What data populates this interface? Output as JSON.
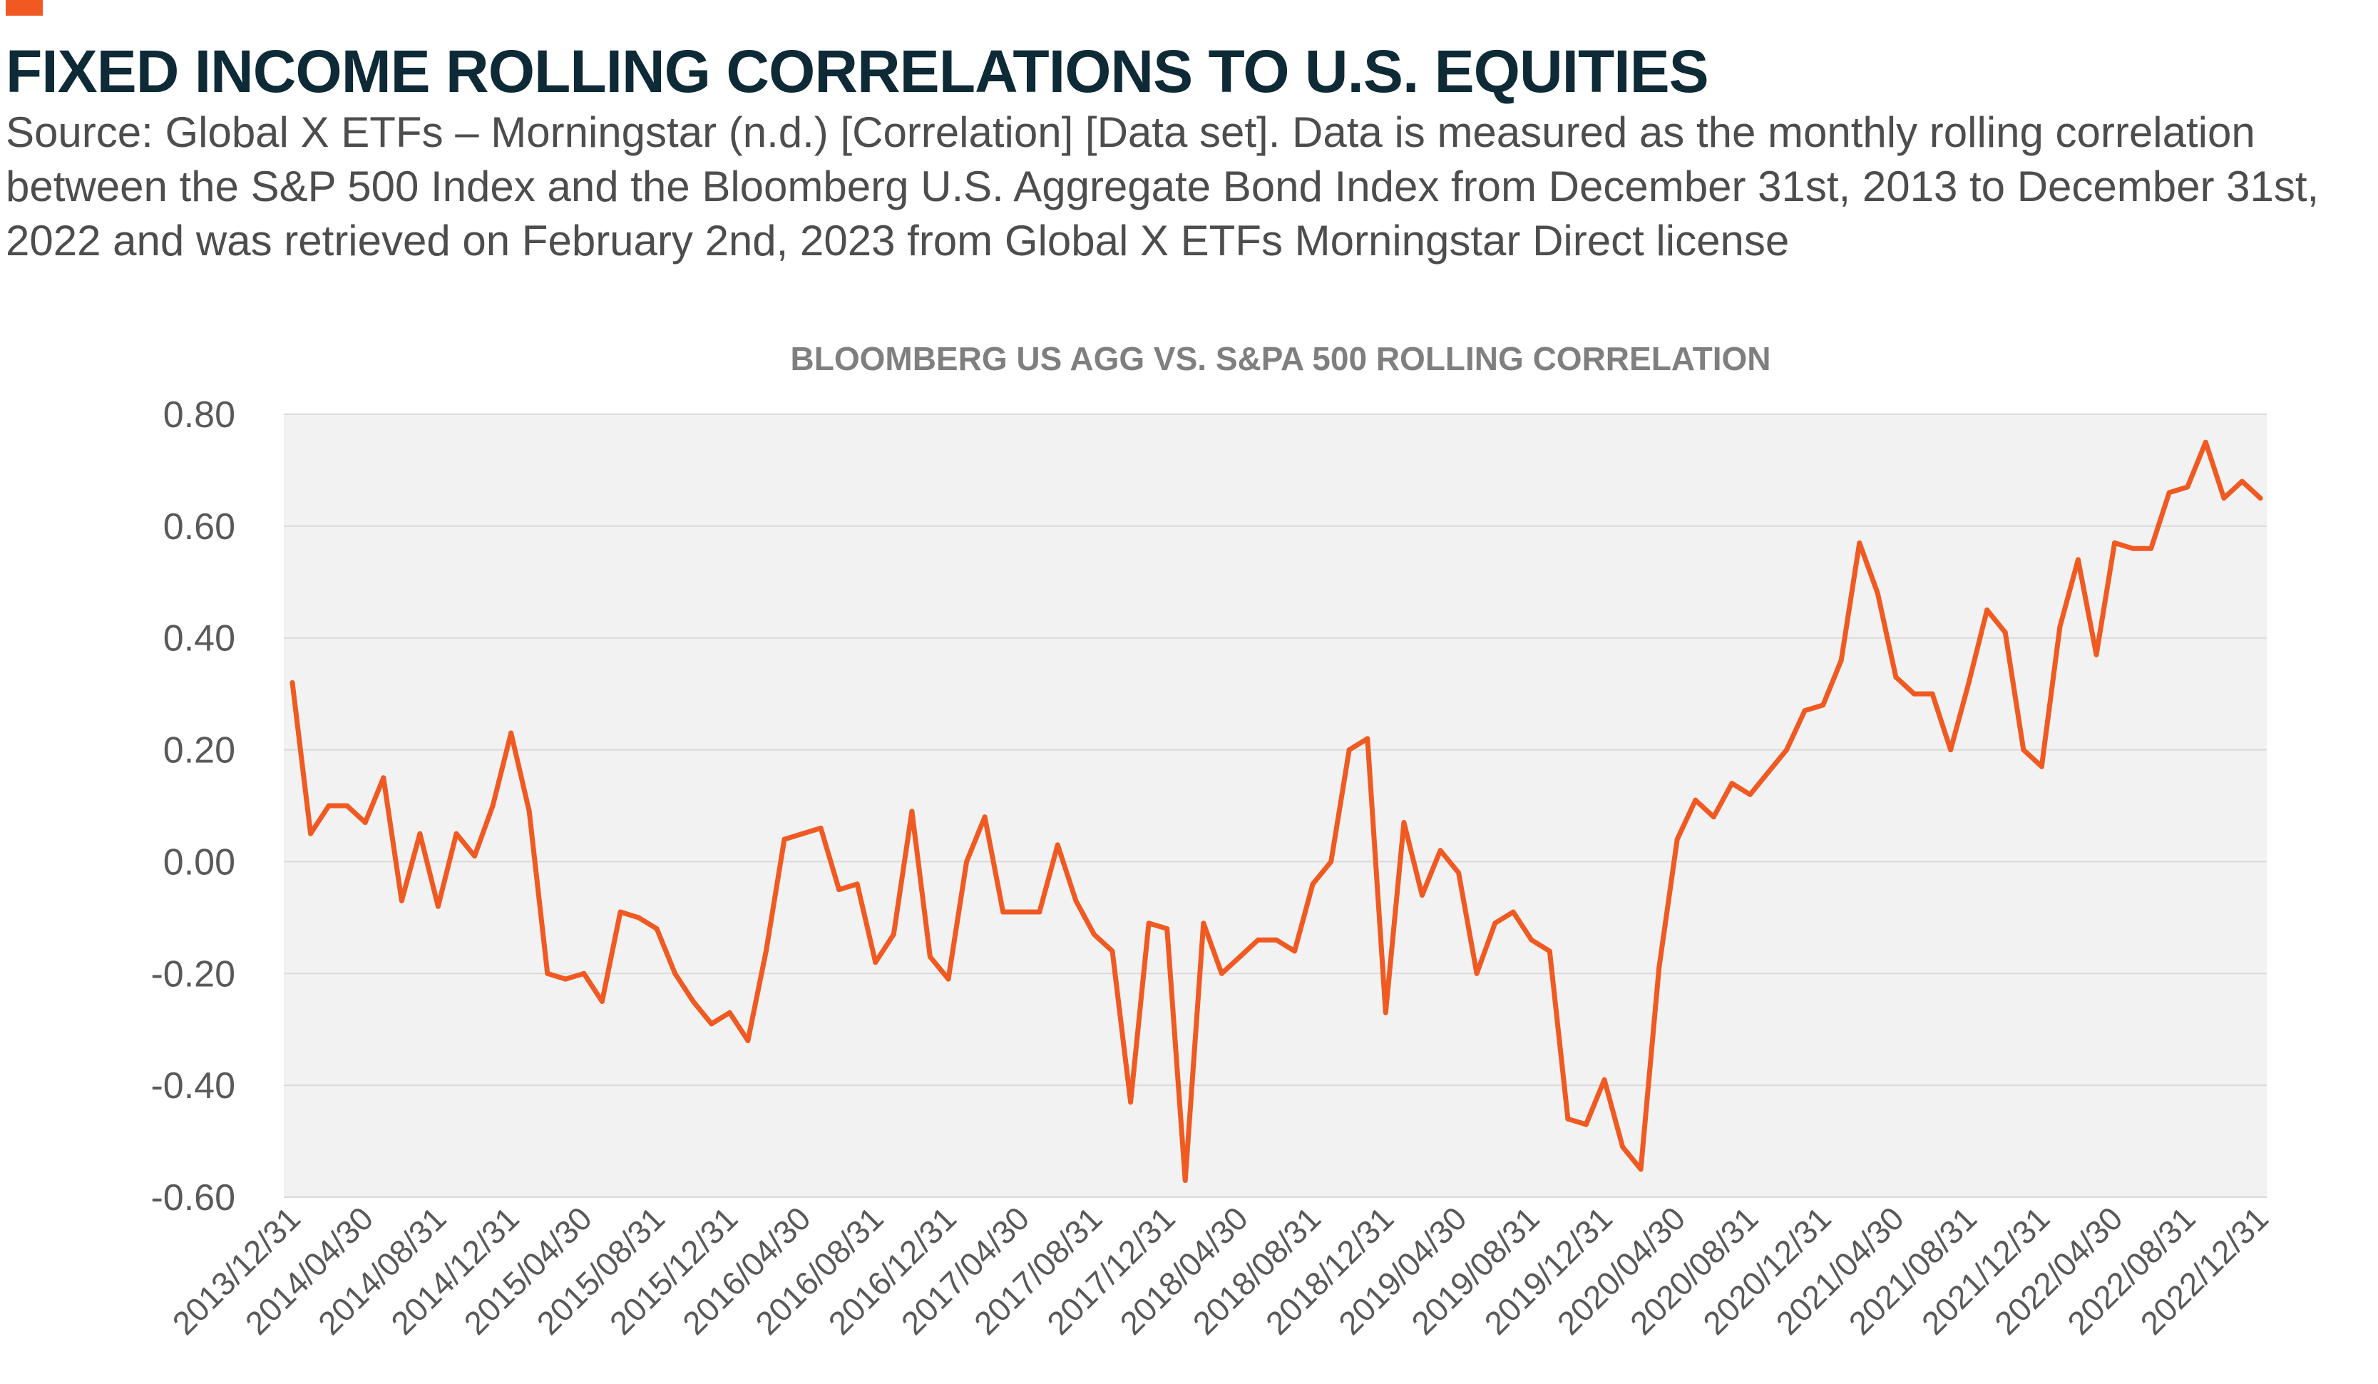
{
  "header": {
    "accent_color": "#f05a22",
    "title": "FIXED INCOME ROLLING CORRELATIONS TO U.S. EQUITIES",
    "source": "Source: Global X ETFs – Morningstar (n.d.) [Correlation] [Data set]. Data is measured as the monthly rolling correlation between the S&P 500 Index and the Bloomberg U.S. Aggregate Bond Index from December 31st, 2013 to December 31st, 2022 and was retrieved on February 2nd, 2023 from Global X ETFs Morningstar Direct license"
  },
  "chart_data": {
    "type": "line",
    "title": "BLOOMBERG US AGG VS. S&PA 500 ROLLING CORRELATION",
    "xlabel": "",
    "ylabel": "",
    "ylim": [
      -0.6,
      0.8
    ],
    "y_ticks": [
      "0.80",
      "0.60",
      "0.40",
      "0.20",
      "0.00",
      "-0.20",
      "-0.40",
      "-0.60"
    ],
    "y_tick_values": [
      0.8,
      0.6,
      0.4,
      0.2,
      0.0,
      -0.2,
      -0.4,
      -0.6
    ],
    "x_tick_labels": [
      "2013/12/31",
      "2014/04/30",
      "2014/08/31",
      "2014/12/31",
      "2015/04/30",
      "2015/08/31",
      "2015/12/31",
      "2016/04/30",
      "2016/08/31",
      "2016/12/31",
      "2017/04/30",
      "2017/08/31",
      "2017/12/31",
      "2018/04/30",
      "2018/08/31",
      "2018/12/31",
      "2019/04/30",
      "2019/08/31",
      "2019/12/31",
      "2020/04/30",
      "2020/08/31",
      "2020/12/31",
      "2021/04/30",
      "2021/08/31",
      "2021/12/31",
      "2022/04/30",
      "2022/08/31",
      "2022/12/31"
    ],
    "x_start": "2013/12/31",
    "x_end": "2022/12/31",
    "frequency": "monthly",
    "grid": true,
    "line_color": "#f05a22",
    "plot_background": "#f2f2f2",
    "series": [
      {
        "values": [
          0.32,
          0.05,
          0.1,
          0.1,
          0.07,
          0.15,
          -0.07,
          0.05,
          -0.08,
          0.05,
          0.01,
          0.1,
          0.23,
          0.09,
          -0.2,
          -0.21,
          -0.2,
          -0.25,
          -0.09,
          -0.1,
          -0.12,
          -0.2,
          -0.25,
          -0.29,
          -0.27,
          -0.32,
          -0.16,
          0.04,
          0.05,
          0.06,
          -0.05,
          -0.04,
          -0.18,
          -0.13,
          0.09,
          -0.17,
          -0.21,
          0.0,
          0.08,
          -0.09,
          -0.09,
          -0.09,
          0.03,
          -0.07,
          -0.13,
          -0.16,
          -0.43,
          -0.11,
          -0.12,
          -0.57,
          -0.11,
          -0.2,
          -0.17,
          -0.14,
          -0.14,
          -0.16,
          -0.04,
          0.0,
          0.2,
          0.22,
          -0.27,
          0.07,
          -0.06,
          0.02,
          -0.02,
          -0.2,
          -0.11,
          -0.09,
          -0.14,
          -0.16,
          -0.46,
          -0.47,
          -0.39,
          -0.51,
          -0.55,
          -0.19,
          0.04,
          0.11,
          0.08,
          0.14,
          0.12,
          0.16,
          0.2,
          0.27,
          0.28,
          0.36,
          0.57,
          0.48,
          0.33,
          0.3,
          0.3,
          0.2,
          0.32,
          0.45,
          0.41,
          0.2,
          0.17,
          0.42,
          0.54,
          0.37,
          0.57,
          0.56,
          0.56,
          0.66,
          0.67,
          0.75,
          0.65,
          0.68,
          0.65
        ]
      }
    ]
  }
}
